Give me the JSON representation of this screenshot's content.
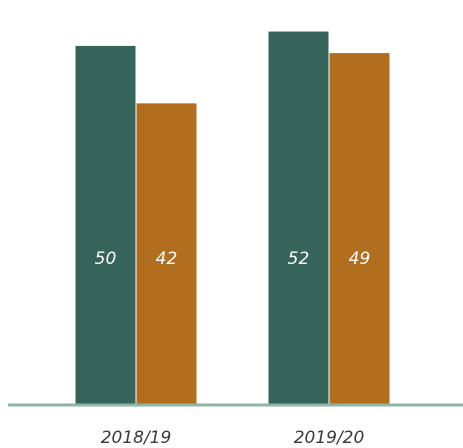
{
  "chart_data": {
    "type": "bar",
    "categories": [
      "2018/19",
      "2019/20"
    ],
    "series": [
      {
        "values": [
          50,
          52
        ],
        "color": "#36635a"
      },
      {
        "values": [
          42,
          49
        ],
        "color": "#b26e1f"
      }
    ],
    "ylim": [
      0,
      55
    ],
    "grid": false,
    "axis_color": "#8fb5a6"
  }
}
